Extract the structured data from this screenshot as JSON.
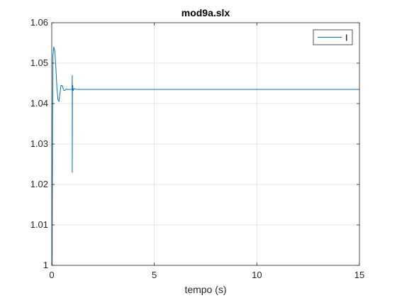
{
  "chart_data": {
    "type": "line",
    "title": "mod9a.slx",
    "xlabel": "tempo (s)",
    "ylabel": "",
    "xlim": [
      0,
      15
    ],
    "ylim": [
      1,
      1.06
    ],
    "xticks": [
      0,
      5,
      10,
      15
    ],
    "xtick_labels": [
      "0",
      "5",
      "10",
      "15"
    ],
    "yticks": [
      1,
      1.01,
      1.02,
      1.03,
      1.04,
      1.05,
      1.06
    ],
    "ytick_labels": [
      "1",
      "1.01",
      "1.02",
      "1.03",
      "1.04",
      "1.05",
      "1.06"
    ],
    "grid": true,
    "legend_position": "top-right",
    "series": [
      {
        "name": "I",
        "color": "#0072BD",
        "x": [
          0,
          0.02,
          0.04,
          0.06,
          0.1,
          0.15,
          0.2,
          0.25,
          0.3,
          0.35,
          0.4,
          0.45,
          0.5,
          0.55,
          0.6,
          0.65,
          0.7,
          0.8,
          0.9,
          0.99,
          1.0,
          1.0,
          1.01,
          1.02,
          1.04,
          1.08,
          1.2,
          1.5,
          2,
          3,
          4,
          5,
          6,
          7,
          8,
          9,
          10,
          11,
          12,
          13,
          14,
          15
        ],
        "y": [
          1.0,
          1.0,
          1.035,
          1.052,
          1.054,
          1.053,
          1.049,
          1.044,
          1.041,
          1.0405,
          1.0425,
          1.0445,
          1.0445,
          1.0438,
          1.0432,
          1.0433,
          1.0436,
          1.0435,
          1.0435,
          1.0435,
          1.047,
          1.023,
          1.043,
          1.0445,
          1.0432,
          1.0437,
          1.0435,
          1.0435,
          1.0435,
          1.0435,
          1.0435,
          1.0435,
          1.0435,
          1.0435,
          1.0435,
          1.0435,
          1.0435,
          1.0435,
          1.0435,
          1.0435,
          1.0435,
          1.0435
        ]
      }
    ]
  }
}
